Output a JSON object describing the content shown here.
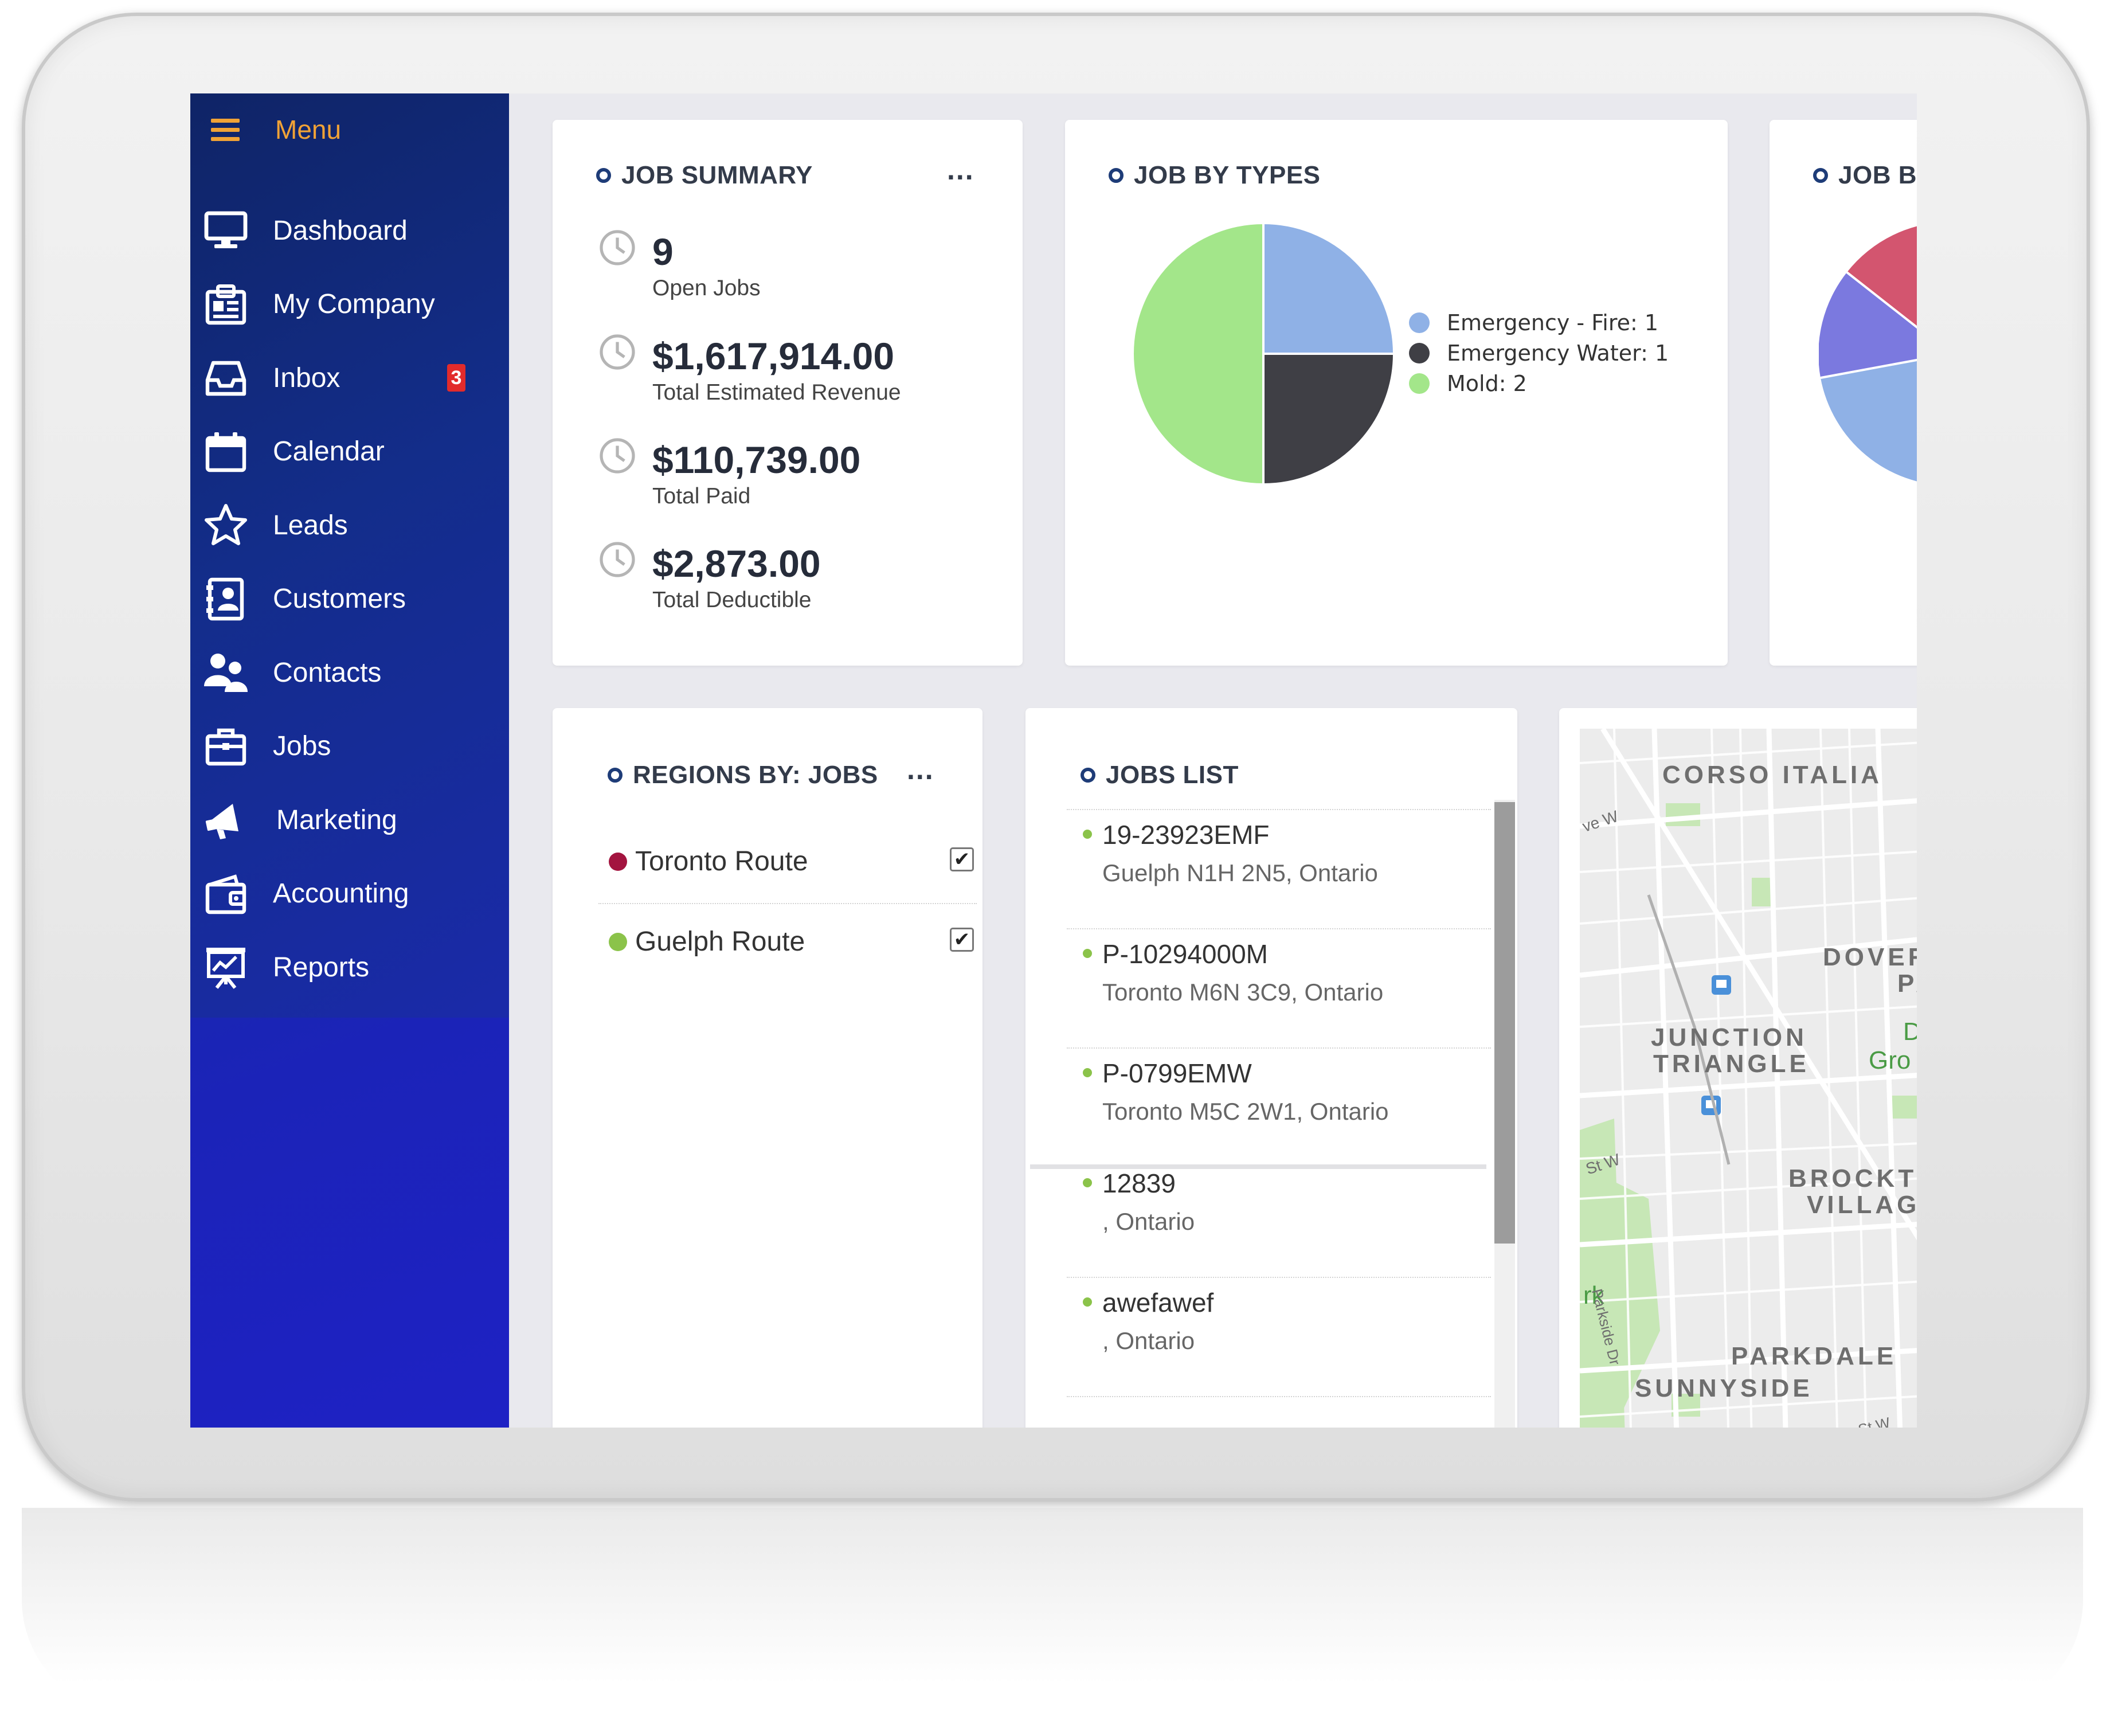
{
  "sidebar": {
    "menu_label": "Menu",
    "items": [
      {
        "label": "Dashboard",
        "icon": "monitor-icon"
      },
      {
        "label": "My Company",
        "icon": "company-icon"
      },
      {
        "label": "Inbox",
        "icon": "inbox-icon",
        "badge": "3"
      },
      {
        "label": "Calendar",
        "icon": "calendar-icon"
      },
      {
        "label": "Leads",
        "icon": "star-icon"
      },
      {
        "label": "Customers",
        "icon": "address-book-icon"
      },
      {
        "label": "Contacts",
        "icon": "users-icon"
      },
      {
        "label": "Jobs",
        "icon": "briefcase-icon"
      },
      {
        "label": "Marketing",
        "icon": "megaphone-icon"
      },
      {
        "label": "Accounting",
        "icon": "wallet-icon"
      },
      {
        "label": "Reports",
        "icon": "presentation-icon"
      }
    ]
  },
  "job_summary": {
    "title": "JOB SUMMARY",
    "menu": "...",
    "stats": [
      {
        "value": "9",
        "label": "Open Jobs"
      },
      {
        "value": "$1,617,914.00",
        "label": "Total Estimated Revenue"
      },
      {
        "value": "$110,739.00",
        "label": "Total Paid"
      },
      {
        "value": "$2,873.00",
        "label": "Total Deductible"
      }
    ]
  },
  "job_by_types": {
    "title": "JOB BY TYPES",
    "legend": [
      {
        "text": "Emergency - Fire: 1",
        "color": "#8fb1e6"
      },
      {
        "text": "Emergency Water: 1",
        "color": "#3f3f45"
      },
      {
        "text": "Mold: 2",
        "color": "#a3e68a"
      }
    ]
  },
  "chart_data": [
    {
      "type": "pie",
      "title": "JOB BY TYPES",
      "categories": [
        "Emergency - Fire",
        "Emergency Water",
        "Mold"
      ],
      "values": [
        1,
        1,
        2
      ],
      "colors": [
        "#8fb1e6",
        "#3f3f45",
        "#a3e68a"
      ],
      "legend_position": "right"
    }
  ],
  "job_by_partial": {
    "title": "JOB B",
    "colors": [
      "#d3556f",
      "#7b79df",
      "#8fb1e6"
    ]
  },
  "regions": {
    "title": "REGIONS BY: JOBS",
    "menu": "...",
    "items": [
      {
        "name": "Toronto Route",
        "color": "#a3143f",
        "checked": true
      },
      {
        "name": "Guelph Route",
        "color": "#8bc34a",
        "checked": true
      }
    ]
  },
  "jobs_list": {
    "title": "JOBS LIST",
    "items": [
      {
        "id": "19-23923EMF",
        "address": "Guelph N1H 2N5, Ontario"
      },
      {
        "id": "P-10294000M",
        "address": "Toronto M6N 3C9, Ontario"
      },
      {
        "id": "P-0799EMW",
        "address": "Toronto M5C 2W1, Ontario"
      },
      {
        "id": "12839",
        "address": ", Ontario"
      },
      {
        "id": "awefawef",
        "address": ", Ontario"
      }
    ]
  },
  "map": {
    "labels": {
      "corso": "CORSO ITALIA",
      "dover": "DOVER",
      "dover2": "PA",
      "junction1": "JUNCTION",
      "junction2": "TRIANGLE",
      "du": "Du",
      "gro": "Gro",
      "brockton1": "BROCKT",
      "brockton2": "VILLAG",
      "parkdale": "PARKDALE",
      "sunnyside": "SUNNYSIDE",
      "park": "rk",
      "parkside": "Parkside Dr",
      "ave_w": "ve W",
      "st_w": "St W",
      "st_w2": "n St W",
      "w": "W"
    },
    "colors": {
      "land": "#ececec",
      "road": "#ffffff",
      "park": "#c7e7b6",
      "transit": "#4a90d9"
    }
  }
}
